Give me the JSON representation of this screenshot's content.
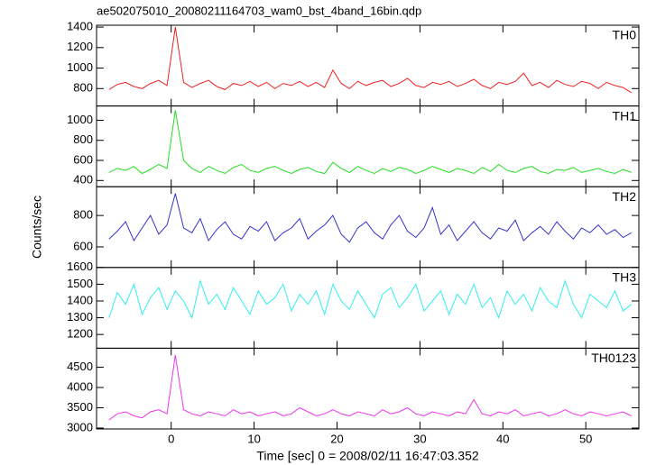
{
  "chart_data": [
    {
      "type": "line",
      "title": "ae502075010_20080211164703_wam0_bst_4band_16bin.qdp",
      "label": "TH0",
      "color": "#ee2222",
      "x": [
        -7.5,
        -6.5,
        -5.5,
        -4.5,
        -3.5,
        -2.5,
        -1.5,
        -0.5,
        0.5,
        1.5,
        2.5,
        3.5,
        4.5,
        5.5,
        6.5,
        7.5,
        8.5,
        9.5,
        10.5,
        11.5,
        12.5,
        13.5,
        14.5,
        15.5,
        16.5,
        17.5,
        18.5,
        19.5,
        20.5,
        21.5,
        22.5,
        23.5,
        24.5,
        25.5,
        26.5,
        27.5,
        28.5,
        29.5,
        30.5,
        31.5,
        32.5,
        33.5,
        34.5,
        35.5,
        36.5,
        37.5,
        38.5,
        39.5,
        40.5,
        41.5,
        42.5,
        43.5,
        44.5,
        45.5,
        46.5,
        47.5,
        48.5,
        49.5,
        50.5,
        51.5,
        52.5,
        53.5,
        54.5,
        55.5
      ],
      "values": [
        790,
        840,
        860,
        820,
        800,
        850,
        880,
        830,
        1400,
        860,
        810,
        850,
        880,
        820,
        790,
        850,
        830,
        870,
        820,
        860,
        800,
        850,
        830,
        870,
        820,
        860,
        810,
        980,
        850,
        800,
        870,
        830,
        860,
        880,
        820,
        850,
        900,
        830,
        810,
        860,
        840,
        870,
        820,
        850,
        890,
        830,
        800,
        860,
        840,
        870,
        950,
        830,
        860,
        810,
        880,
        840,
        820,
        870,
        850,
        800,
        860,
        830,
        810,
        760
      ],
      "xlim": [
        -9,
        56.4
      ],
      "xticks": [
        0,
        10,
        20,
        30,
        40,
        50
      ],
      "ylim": [
        630,
        1418
      ],
      "yticks": [
        800,
        1000,
        1200,
        1400
      ]
    },
    {
      "type": "line",
      "label": "TH1",
      "color": "#22dd22",
      "x": [
        -7.5,
        -6.5,
        -5.5,
        -4.5,
        -3.5,
        -2.5,
        -1.5,
        -0.5,
        0.5,
        1.5,
        2.5,
        3.5,
        4.5,
        5.5,
        6.5,
        7.5,
        8.5,
        9.5,
        10.5,
        11.5,
        12.5,
        13.5,
        14.5,
        15.5,
        16.5,
        17.5,
        18.5,
        19.5,
        20.5,
        21.5,
        22.5,
        23.5,
        24.5,
        25.5,
        26.5,
        27.5,
        28.5,
        29.5,
        30.5,
        31.5,
        32.5,
        33.5,
        34.5,
        35.5,
        36.5,
        37.5,
        38.5,
        39.5,
        40.5,
        41.5,
        42.5,
        43.5,
        44.5,
        45.5,
        46.5,
        47.5,
        48.5,
        49.5,
        50.5,
        51.5,
        52.5,
        53.5,
        54.5,
        55.5
      ],
      "values": [
        480,
        520,
        500,
        540,
        470,
        510,
        560,
        520,
        1100,
        600,
        520,
        480,
        540,
        500,
        470,
        530,
        560,
        500,
        480,
        520,
        540,
        500,
        470,
        510,
        530,
        490,
        470,
        580,
        520,
        480,
        540,
        500,
        470,
        520,
        490,
        530,
        510,
        470,
        500,
        540,
        510,
        480,
        520,
        500,
        470,
        530,
        490,
        560,
        500,
        480,
        520,
        540,
        490,
        470,
        510,
        500,
        530,
        480,
        500,
        520,
        490,
        470,
        510,
        480
      ],
      "xlim": [
        -9,
        56.4
      ],
      "xticks": [
        0,
        10,
        20,
        30,
        40,
        50
      ],
      "ylim": [
        338,
        1142
      ],
      "yticks": [
        400,
        600,
        800,
        1000
      ]
    },
    {
      "type": "line",
      "label": "TH2",
      "ylabel": "Counts/sec",
      "color": "#3333cc",
      "x": [
        -7.5,
        -6.5,
        -5.5,
        -4.5,
        -3.5,
        -2.5,
        -1.5,
        -0.5,
        0.5,
        1.5,
        2.5,
        3.5,
        4.5,
        5.5,
        6.5,
        7.5,
        8.5,
        9.5,
        10.5,
        11.5,
        12.5,
        13.5,
        14.5,
        15.5,
        16.5,
        17.5,
        18.5,
        19.5,
        20.5,
        21.5,
        22.5,
        23.5,
        24.5,
        25.5,
        26.5,
        27.5,
        28.5,
        29.5,
        30.5,
        31.5,
        32.5,
        33.5,
        34.5,
        35.5,
        36.5,
        37.5,
        38.5,
        39.5,
        40.5,
        41.5,
        42.5,
        43.5,
        44.5,
        45.5,
        46.5,
        47.5,
        48.5,
        49.5,
        50.5,
        51.5,
        52.5,
        53.5,
        54.5,
        55.5
      ],
      "values": [
        650,
        700,
        760,
        640,
        720,
        800,
        680,
        740,
        940,
        720,
        690,
        780,
        640,
        710,
        760,
        680,
        650,
        730,
        700,
        760,
        640,
        690,
        720,
        780,
        650,
        700,
        740,
        800,
        680,
        630,
        720,
        760,
        690,
        650,
        740,
        800,
        700,
        660,
        720,
        850,
        680,
        740,
        640,
        700,
        760,
        690,
        650,
        720,
        700,
        770,
        640,
        690,
        730,
        680,
        760,
        700,
        650,
        720,
        690,
        740,
        680,
        710,
        660,
        690
      ],
      "xlim": [
        -9,
        56.4
      ],
      "xticks": [
        0,
        10,
        20,
        30,
        40,
        50
      ],
      "ylim": [
        469,
        983
      ],
      "yticks": [
        600,
        800
      ]
    },
    {
      "type": "line",
      "label": "TH3",
      "color": "#33eeee",
      "x": [
        -7.5,
        -6.5,
        -5.5,
        -4.5,
        -3.5,
        -2.5,
        -1.5,
        -0.5,
        0.5,
        1.5,
        2.5,
        3.5,
        4.5,
        5.5,
        6.5,
        7.5,
        8.5,
        9.5,
        10.5,
        11.5,
        12.5,
        13.5,
        14.5,
        15.5,
        16.5,
        17.5,
        18.5,
        19.5,
        20.5,
        21.5,
        22.5,
        23.5,
        24.5,
        25.5,
        26.5,
        27.5,
        28.5,
        29.5,
        30.5,
        31.5,
        32.5,
        33.5,
        34.5,
        35.5,
        36.5,
        37.5,
        38.5,
        39.5,
        40.5,
        41.5,
        42.5,
        43.5,
        44.5,
        45.5,
        46.5,
        47.5,
        48.5,
        49.5,
        50.5,
        51.5,
        52.5,
        53.5,
        54.5,
        55.5
      ],
      "values": [
        1300,
        1450,
        1380,
        1500,
        1320,
        1420,
        1480,
        1350,
        1460,
        1400,
        1300,
        1520,
        1380,
        1440,
        1350,
        1480,
        1400,
        1320,
        1460,
        1380,
        1420,
        1500,
        1340,
        1440,
        1380,
        1460,
        1320,
        1500,
        1400,
        1350,
        1460,
        1380,
        1300,
        1440,
        1480,
        1360,
        1420,
        1500,
        1340,
        1400,
        1460,
        1320,
        1440,
        1380,
        1500,
        1360,
        1420,
        1300,
        1460,
        1380,
        1440,
        1340,
        1480,
        1400,
        1360,
        1520,
        1380,
        1300,
        1440,
        1400,
        1360,
        1460,
        1340,
        1380
      ],
      "xlim": [
        -9,
        56.4
      ],
      "xticks": [
        0,
        10,
        20,
        30,
        40,
        50
      ],
      "ylim": [
        1118,
        1600
      ],
      "yticks": [
        1200,
        1300,
        1400,
        1500,
        1600
      ]
    },
    {
      "type": "line",
      "label": "TH0123",
      "xlabel": "Time [sec] 0 = 2008/02/11 16:47:03.352",
      "color": "#ee33ee",
      "x": [
        -7.5,
        -6.5,
        -5.5,
        -4.5,
        -3.5,
        -2.5,
        -1.5,
        -0.5,
        0.5,
        1.5,
        2.5,
        3.5,
        4.5,
        5.5,
        6.5,
        7.5,
        8.5,
        9.5,
        10.5,
        11.5,
        12.5,
        13.5,
        14.5,
        15.5,
        16.5,
        17.5,
        18.5,
        19.5,
        20.5,
        21.5,
        22.5,
        23.5,
        24.5,
        25.5,
        26.5,
        27.5,
        28.5,
        29.5,
        30.5,
        31.5,
        32.5,
        33.5,
        34.5,
        35.5,
        36.5,
        37.5,
        38.5,
        39.5,
        40.5,
        41.5,
        42.5,
        43.5,
        44.5,
        45.5,
        46.5,
        47.5,
        48.5,
        49.5,
        50.5,
        51.5,
        52.5,
        53.5,
        54.5,
        55.5
      ],
      "values": [
        3200,
        3350,
        3400,
        3300,
        3250,
        3400,
        3450,
        3350,
        4800,
        3450,
        3350,
        3300,
        3400,
        3350,
        3300,
        3450,
        3350,
        3400,
        3300,
        3350,
        3400,
        3300,
        3350,
        3500,
        3400,
        3300,
        3350,
        3450,
        3350,
        3300,
        3400,
        3350,
        3300,
        3450,
        3350,
        3400,
        3500,
        3350,
        3300,
        3400,
        3350,
        3300,
        3400,
        3350,
        3700,
        3350,
        3300,
        3400,
        3350,
        3450,
        3300,
        3350,
        3400,
        3300,
        3350,
        3450,
        3350,
        3300,
        3400,
        3350,
        3300,
        3350,
        3400,
        3300
      ],
      "xlim": [
        -9,
        56.4
      ],
      "xticks": [
        0,
        10,
        20,
        30,
        40,
        50
      ],
      "ylim": [
        2978,
        4967
      ],
      "yticks": [
        3000,
        3500,
        4000,
        4500
      ]
    }
  ]
}
